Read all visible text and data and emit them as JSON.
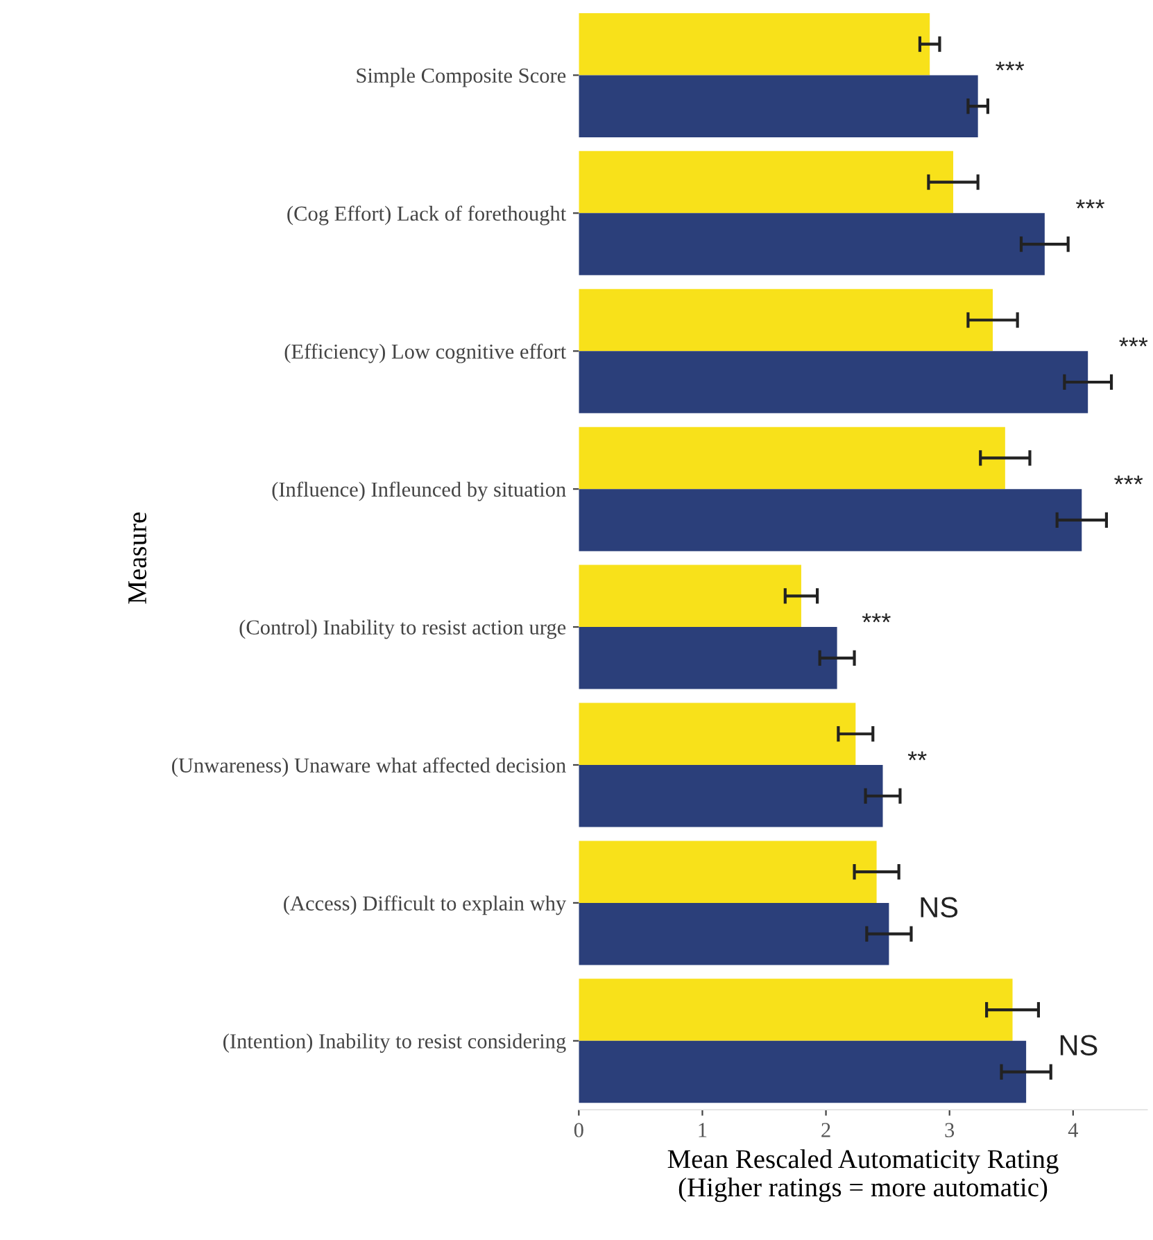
{
  "chart_data": {
    "type": "bar",
    "orientation": "horizontal",
    "xlabel": "Mean Rescaled Automaticity Rating\n(Higher ratings = more automatic)",
    "ylabel": "Measure",
    "categories": [
      "Simple Composite Score",
      "(Cog Effort) Lack of forethought",
      "(Efficiency) Low cognitive effort",
      "(Influence) Infleunced by situation",
      "(Control) Inability to resist action urge",
      "(Unwareness) Unaware what affected decision",
      "(Access) Difficult to explain why",
      "(Intention) Inability to resist considering"
    ],
    "series": [
      {
        "color": "#f8e11a",
        "values": [
          2.84,
          3.03,
          3.35,
          3.45,
          1.8,
          2.24,
          2.41,
          3.51
        ],
        "errors": [
          0.08,
          0.2,
          0.2,
          0.2,
          0.13,
          0.14,
          0.18,
          0.21
        ]
      },
      {
        "color": "#2b3f7a",
        "values": [
          3.23,
          3.77,
          4.12,
          4.07,
          2.09,
          2.46,
          2.51,
          3.62
        ],
        "errors": [
          0.08,
          0.19,
          0.19,
          0.2,
          0.14,
          0.14,
          0.18,
          0.2
        ]
      }
    ],
    "annotations": [
      "***",
      "***",
      "***",
      "***",
      "***",
      "**",
      "NS",
      "NS"
    ],
    "xlim": [
      0,
      4.6
    ],
    "xticks": [
      0,
      1,
      2,
      3,
      4
    ],
    "grid": false,
    "legend": false
  }
}
